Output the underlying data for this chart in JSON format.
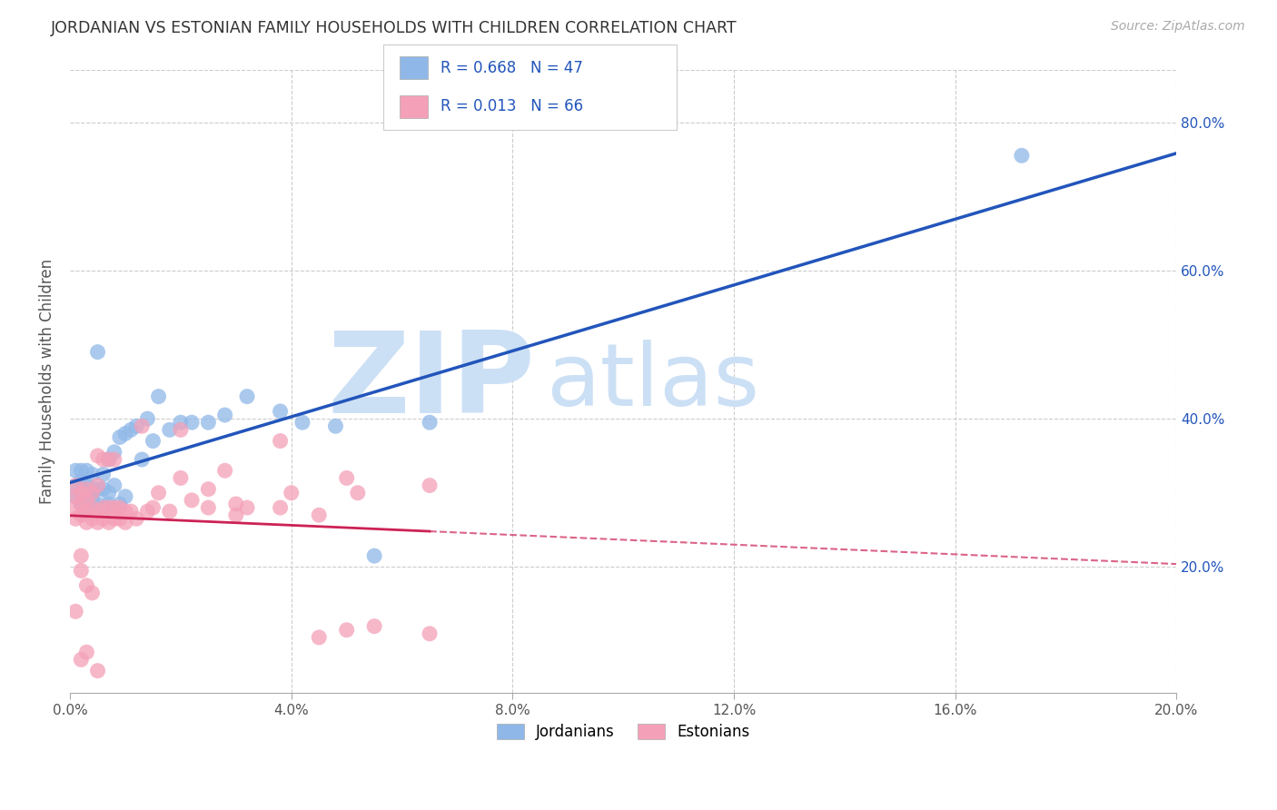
{
  "title": "JORDANIAN VS ESTONIAN FAMILY HOUSEHOLDS WITH CHILDREN CORRELATION CHART",
  "source": "Source: ZipAtlas.com",
  "ylabel": "Family Households with Children",
  "legend_labels": [
    "Jordanians",
    "Estonians"
  ],
  "legend_r": [
    0.668,
    0.013
  ],
  "legend_n": [
    47,
    66
  ],
  "jordanian_color": "#8fb8e8",
  "estonian_color": "#f4a0b8",
  "jordanian_line_color": "#2255bb",
  "estonian_line_color": "#cc2255",
  "watermark_zip": "ZIP",
  "watermark_atlas": "atlas",
  "watermark_color": "#cce0f5",
  "xmin": 0.0,
  "xmax": 0.2,
  "ymin": 0.03,
  "ymax": 0.87,
  "xticks": [
    0.0,
    0.04,
    0.08,
    0.12,
    0.16,
    0.2
  ],
  "yticks": [
    0.2,
    0.4,
    0.6,
    0.8
  ],
  "ytick_labels": [
    "20.0%",
    "40.0%",
    "60.0%",
    "80.0%"
  ],
  "xtick_labels": [
    "0.0%",
    "4.0%",
    "8.0%",
    "12.0%",
    "16.0%",
    "20.0%"
  ],
  "jordanian_x": [
    0.001,
    0.001,
    0.001,
    0.002,
    0.002,
    0.002,
    0.002,
    0.003,
    0.003,
    0.003,
    0.003,
    0.004,
    0.004,
    0.004,
    0.005,
    0.005,
    0.005,
    0.006,
    0.006,
    0.006,
    0.007,
    0.007,
    0.007,
    0.008,
    0.008,
    0.009,
    0.009,
    0.01,
    0.01,
    0.011,
    0.012,
    0.013,
    0.014,
    0.015,
    0.016,
    0.018,
    0.02,
    0.022,
    0.025,
    0.028,
    0.032,
    0.038,
    0.042,
    0.048,
    0.055,
    0.065,
    0.172
  ],
  "jordanian_y": [
    0.295,
    0.31,
    0.33,
    0.285,
    0.3,
    0.315,
    0.33,
    0.275,
    0.295,
    0.31,
    0.33,
    0.29,
    0.305,
    0.325,
    0.285,
    0.305,
    0.49,
    0.28,
    0.305,
    0.325,
    0.285,
    0.3,
    0.345,
    0.31,
    0.355,
    0.285,
    0.375,
    0.295,
    0.38,
    0.385,
    0.39,
    0.345,
    0.4,
    0.37,
    0.43,
    0.385,
    0.395,
    0.395,
    0.395,
    0.405,
    0.43,
    0.41,
    0.395,
    0.39,
    0.215,
    0.395,
    0.755
  ],
  "estonian_x": [
    0.001,
    0.001,
    0.001,
    0.001,
    0.001,
    0.002,
    0.002,
    0.002,
    0.002,
    0.002,
    0.003,
    0.003,
    0.003,
    0.003,
    0.003,
    0.004,
    0.004,
    0.004,
    0.004,
    0.005,
    0.005,
    0.005,
    0.005,
    0.006,
    0.006,
    0.006,
    0.007,
    0.007,
    0.007,
    0.008,
    0.008,
    0.008,
    0.009,
    0.009,
    0.01,
    0.01,
    0.011,
    0.012,
    0.013,
    0.014,
    0.015,
    0.016,
    0.018,
    0.02,
    0.022,
    0.025,
    0.028,
    0.03,
    0.032,
    0.038,
    0.045,
    0.05,
    0.055,
    0.065,
    0.02,
    0.025,
    0.04,
    0.05,
    0.065,
    0.03,
    0.038,
    0.045,
    0.052,
    0.002,
    0.003,
    0.005
  ],
  "estonian_y": [
    0.265,
    0.28,
    0.295,
    0.31,
    0.14,
    0.27,
    0.285,
    0.3,
    0.195,
    0.215,
    0.26,
    0.275,
    0.29,
    0.305,
    0.175,
    0.265,
    0.28,
    0.3,
    0.165,
    0.26,
    0.275,
    0.31,
    0.35,
    0.265,
    0.28,
    0.345,
    0.26,
    0.28,
    0.345,
    0.265,
    0.28,
    0.345,
    0.265,
    0.28,
    0.26,
    0.275,
    0.275,
    0.265,
    0.39,
    0.275,
    0.28,
    0.3,
    0.275,
    0.385,
    0.29,
    0.305,
    0.33,
    0.285,
    0.28,
    0.37,
    0.105,
    0.115,
    0.12,
    0.11,
    0.32,
    0.28,
    0.3,
    0.32,
    0.31,
    0.27,
    0.28,
    0.27,
    0.3,
    0.075,
    0.085,
    0.06
  ]
}
